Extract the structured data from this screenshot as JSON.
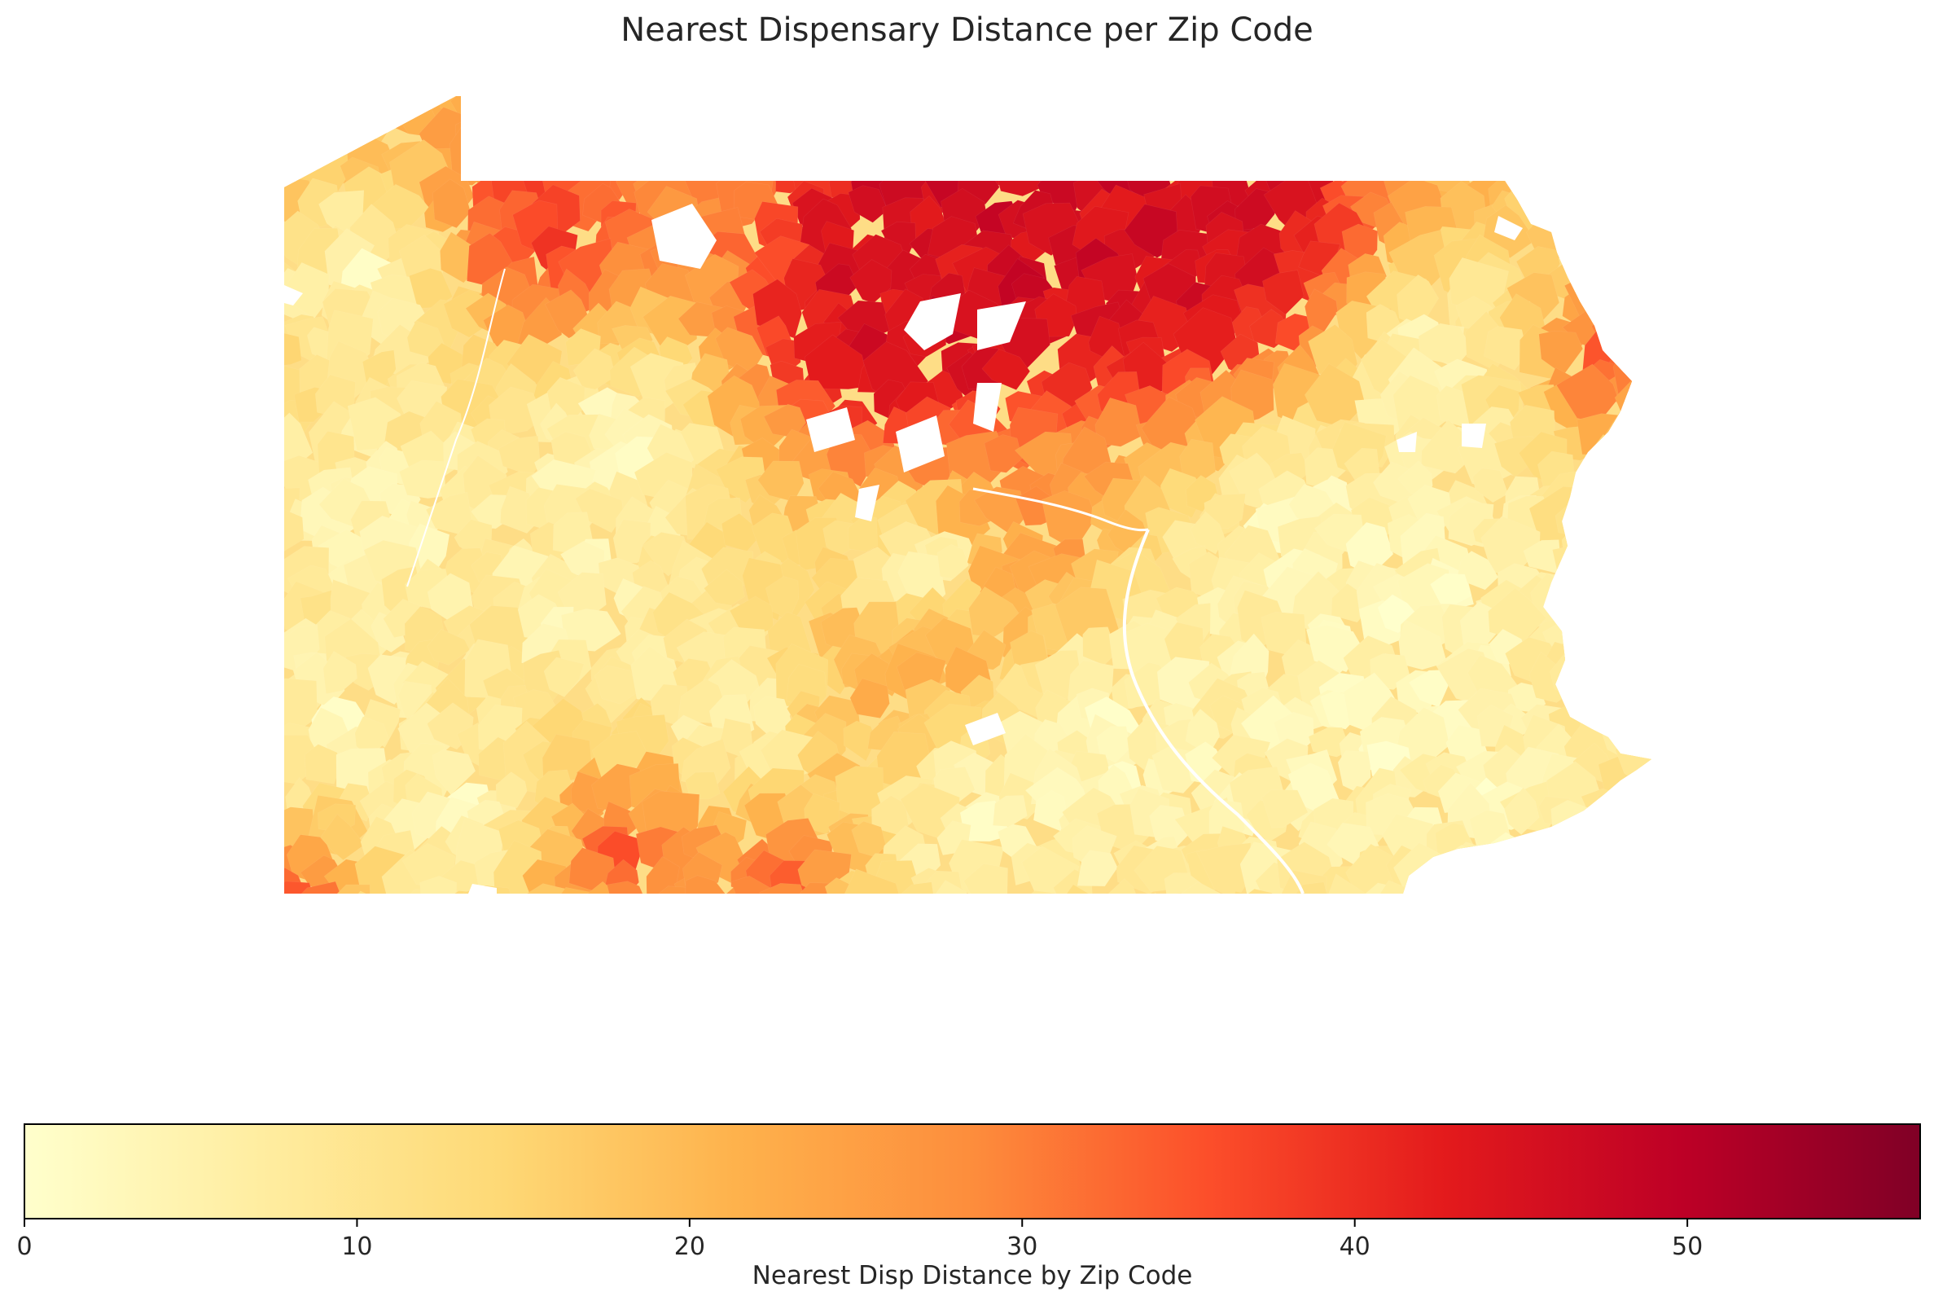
{
  "title": "Nearest Dispensary Distance per Zip Code",
  "colorbar": {
    "label": "Nearest Disp Distance by Zip Code",
    "min": 0,
    "max": 57,
    "ticks": [
      0,
      10,
      20,
      30,
      40,
      50
    ],
    "tick_labels": [
      "0",
      "10",
      "20",
      "30",
      "40",
      "50"
    ],
    "colormap": "YlOrRd",
    "colors": [
      "#ffffcc",
      "#ffeda0",
      "#fed976",
      "#feb24c",
      "#fd8d3c",
      "#fc4e2a",
      "#e31a1c",
      "#bd0026",
      "#800026"
    ]
  },
  "map": {
    "region": "Pennsylvania",
    "unit": "zip code",
    "color_by": "nearest dispensary distance",
    "hotspots": [
      {
        "area": "north-central border",
        "value": 55
      },
      {
        "area": "north-central",
        "value": 45
      },
      {
        "area": "northwest",
        "value": 38
      },
      {
        "area": "northeast tip",
        "value": 37
      },
      {
        "area": "south-central",
        "value": 34
      },
      {
        "area": "southwest corner",
        "value": 33
      },
      {
        "area": "central ridges",
        "value": 28
      }
    ]
  }
}
